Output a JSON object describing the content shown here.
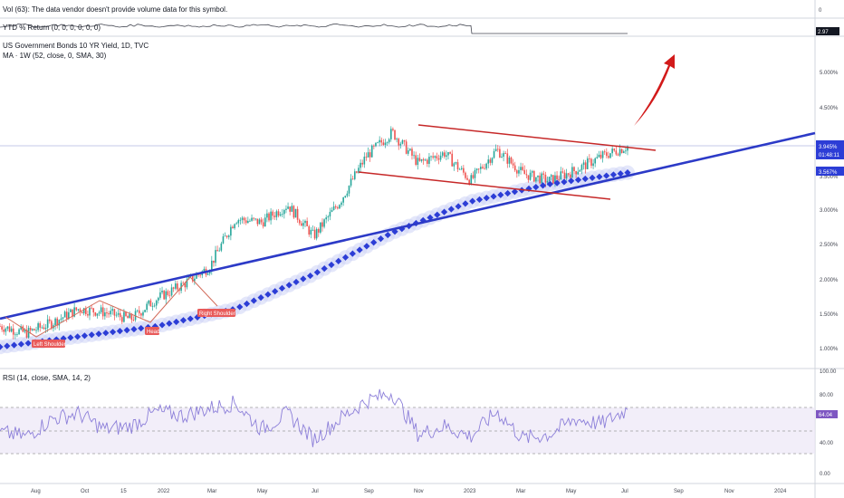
{
  "panes": {
    "volume": {
      "label": "Vol (63): The data vendor doesn't provide volume data for this symbol.",
      "axis_value": "0"
    },
    "ytd": {
      "label": "YTD % Return (0, 0, 0, 0, 0, 0)",
      "last_value": "2.97"
    },
    "main": {
      "title": "US Government Bonds 10 YR Yield, 1D, TVC",
      "indicator": "MA · 1W (52, close, 0, SMA, 30)",
      "price_tag": "3.945%",
      "countdown": "01:48:11",
      "ma_tag": "3.567%"
    },
    "rsi": {
      "label": "RSI (14, close, SMA, 14, 2)",
      "last_value": "64.04"
    }
  },
  "chart_data": [
    {
      "type": "candlestick",
      "title": "US Government Bonds 10 YR Yield, 1D, TVC",
      "y_unit": "%",
      "ylim": [
        0.9,
        5.5
      ],
      "y_ticks": [
        "5.000%",
        "4.500%",
        "3.500%",
        "3.000%",
        "2.500%",
        "2.000%",
        "1.500%",
        "1.000%"
      ],
      "x_ticks": [
        "Aug",
        "Oct",
        "15",
        "2022",
        "Mar",
        "May",
        "Jul",
        "Sep",
        "Nov",
        "2023",
        "Mar",
        "May",
        "Jul",
        "Sep",
        "Nov",
        "2024"
      ],
      "series": [
        {
          "name": "US Government Bonds 10 YR Yield",
          "x": [
            "Jul 2021",
            "Aug 2021",
            "Sep 2021",
            "Oct 2021",
            "Nov 2021",
            "Dec 2021",
            "Jan 2022",
            "Feb 2022",
            "Mar 2022",
            "Apr 2022",
            "May 2022",
            "Jun 2022",
            "Jul 2022",
            "Aug 2022",
            "Sep 2022",
            "Oct 2022",
            "Nov 2022",
            "Dec 2022",
            "Jan 2023",
            "Feb 2023",
            "Mar 2023",
            "Apr 2023",
            "May 2023",
            "Jun 2023",
            "Jul 2023"
          ],
          "values": [
            1.35,
            1.25,
            1.4,
            1.6,
            1.55,
            1.45,
            1.75,
            1.95,
            2.2,
            2.9,
            2.85,
            3.1,
            2.65,
            3.15,
            3.8,
            4.15,
            3.7,
            3.85,
            3.45,
            3.9,
            3.55,
            3.45,
            3.6,
            3.8,
            3.945
          ]
        },
        {
          "name": "MA 1W (52)",
          "x": [
            "Jul 2021",
            "Oct 2021",
            "Jan 2022",
            "Apr 2022",
            "Jul 2022",
            "Oct 2022",
            "Jan 2023",
            "Apr 2023",
            "Jul 2023"
          ],
          "values": [
            1.05,
            1.2,
            1.35,
            1.6,
            2.1,
            2.7,
            3.15,
            3.4,
            3.567
          ]
        }
      ],
      "annotations": [
        "Left Shoulder",
        "Head",
        "Right Shoulder"
      ]
    },
    {
      "type": "line",
      "title": "RSI (14, close, SMA, 14, 2)",
      "ylim": [
        0,
        100
      ],
      "y_ticks": [
        "100.00",
        "80.00",
        "40.00",
        "0.00"
      ],
      "last_value": 64.04,
      "band": [
        30,
        70
      ],
      "series": [
        {
          "name": "RSI",
          "x": [
            "Jul 2021",
            "Aug 2021",
            "Sep 2021",
            "Oct 2021",
            "Nov 2021",
            "Dec 2021",
            "Jan 2022",
            "Feb 2022",
            "Mar 2022",
            "Apr 2022",
            "May 2022",
            "Jun 2022",
            "Jul 2022",
            "Aug 2022",
            "Sep 2022",
            "Oct 2022",
            "Nov 2022",
            "Dec 2022",
            "Jan 2023",
            "Feb 2023",
            "Mar 2023",
            "Apr 2023",
            "May 2023",
            "Jun 2023",
            "Jul 2023"
          ],
          "values": [
            42,
            38,
            55,
            60,
            45,
            48,
            62,
            58,
            65,
            70,
            45,
            60,
            35,
            55,
            72,
            80,
            40,
            48,
            38,
            62,
            36,
            40,
            55,
            50,
            64
          ]
        }
      ]
    }
  ],
  "colors": {
    "candle_up": "#26a69a",
    "candle_down": "#ef5350",
    "ma": "#2c3dd6",
    "ma_glow": "#cdd3f5",
    "trend": "#2c3ac7",
    "channel": "#c62828",
    "rsi": "#8c7fd9",
    "tag_red": "#e85a5a"
  }
}
